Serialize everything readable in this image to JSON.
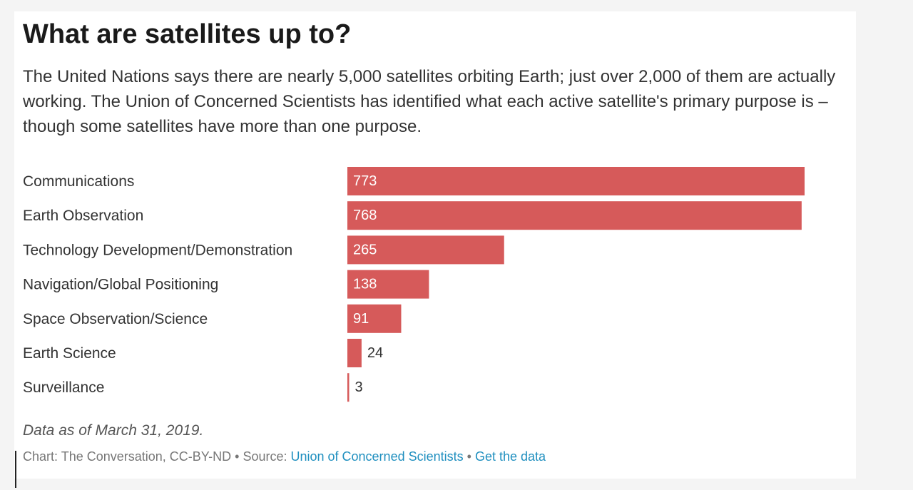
{
  "title": "What are satellites up to?",
  "subtitle": "The United Nations says there are nearly 5,000 satellites orbiting Earth; just over 2,000 of them are actually working. The Union of Concerned Scientists has identified what each active satellite's primary purpose is – though some satellites have more than one purpose.",
  "note": "Data as of March 31, 2019.",
  "credits": {
    "chart_label": "Chart: The Conversation, CC-BY-ND",
    "separator": " • ",
    "source_label": "Source: ",
    "source_link": "Union of Concerned Scientists",
    "data_link": "Get the data"
  },
  "chart_data": {
    "type": "bar",
    "orientation": "horizontal",
    "categories": [
      "Communications",
      "Earth Observation",
      "Technology Development/Demonstration",
      "Navigation/Global Positioning",
      "Space Observation/Science",
      "Earth Science",
      "Surveillance"
    ],
    "values": [
      773,
      768,
      265,
      138,
      91,
      24,
      3
    ],
    "xlim": [
      0,
      773
    ],
    "bar_color": "#d65a5a",
    "grid": false
  }
}
